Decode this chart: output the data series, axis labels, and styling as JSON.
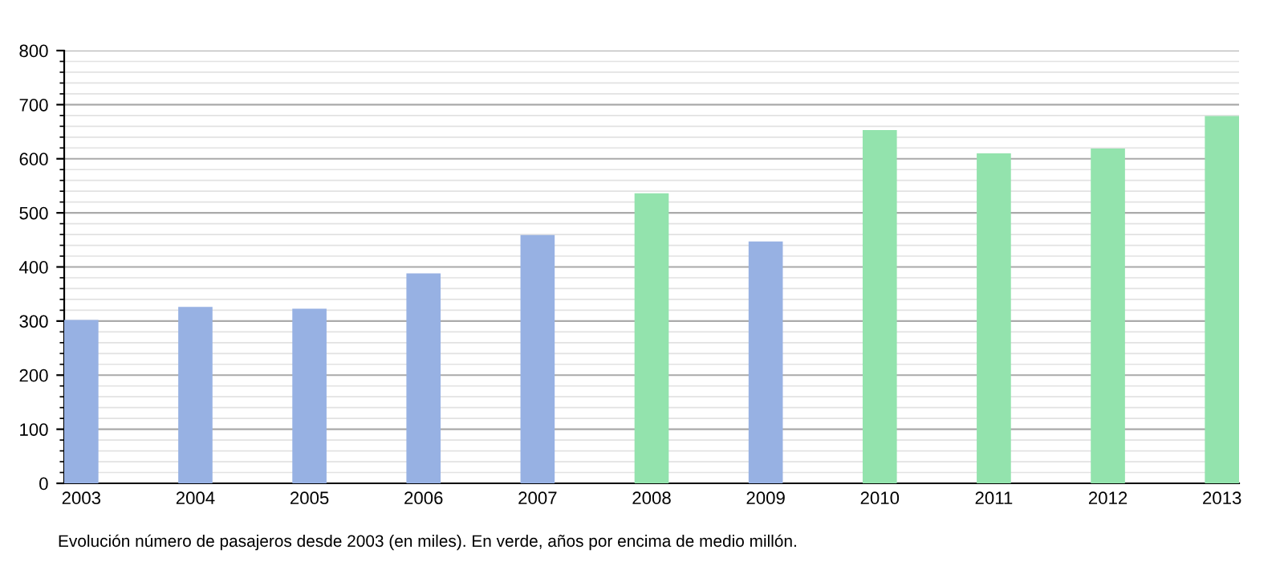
{
  "chart_data": {
    "type": "bar",
    "categories": [
      "2003",
      "2004",
      "2005",
      "2006",
      "2007",
      "2008",
      "2009",
      "2010",
      "2011",
      "2012",
      "2013"
    ],
    "values": [
      302,
      326,
      323,
      388,
      459,
      536,
      447,
      653,
      610,
      619,
      679
    ],
    "colors": [
      "#97b1e3",
      "#97b1e3",
      "#97b1e3",
      "#97b1e3",
      "#97b1e3",
      "#93e3ad",
      "#97b1e3",
      "#93e3ad",
      "#93e3ad",
      "#93e3ad",
      "#93e3ad"
    ],
    "ylim": [
      0,
      800
    ],
    "yticks": [
      0,
      100,
      200,
      300,
      400,
      500,
      600,
      700,
      800
    ],
    "grid": "y",
    "annotations": [
      "Evolución número de pasajeros desde 2003 (en miles). En verde, años por encima de medio millón."
    ]
  }
}
